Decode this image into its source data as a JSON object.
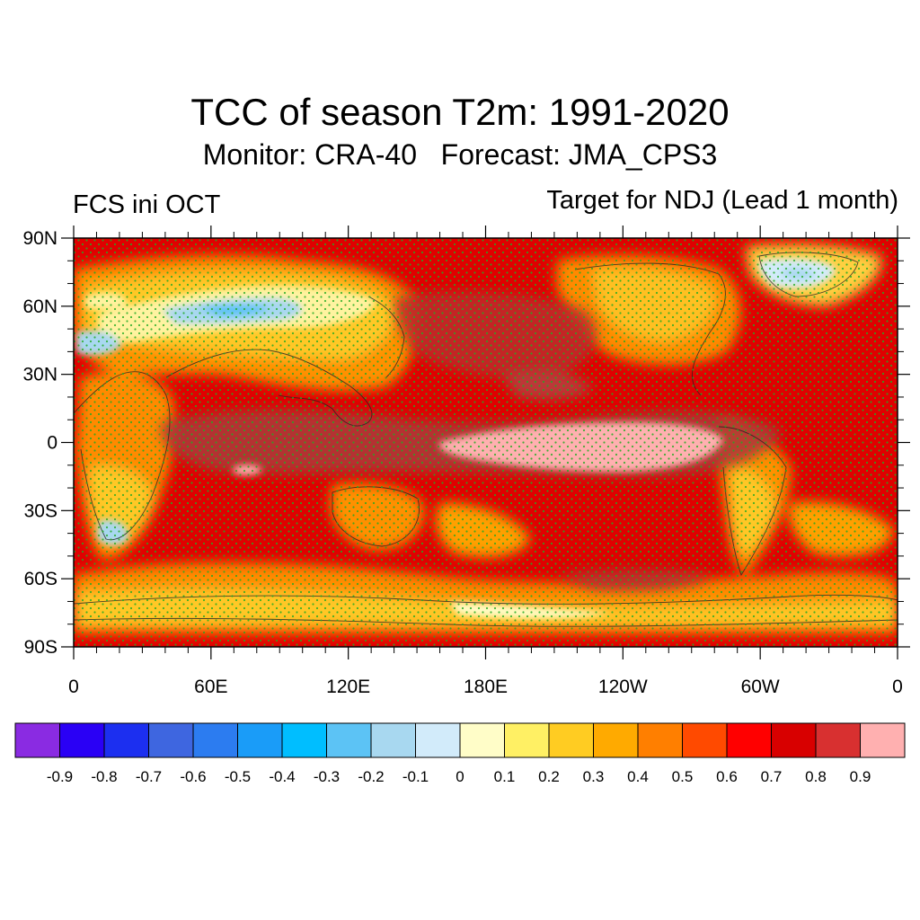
{
  "title": "TCC of season T2m: 1991-2020",
  "subtitle": "Monitor: CRA-40   Forecast: JMA_CPS3",
  "left_label": "FCS ini OCT",
  "right_label": "Target for NDJ (Lead 1 month)",
  "map": {
    "lat_labels": [
      "90N",
      "60N",
      "30N",
      "0",
      "30S",
      "60S",
      "90S"
    ],
    "lon_labels": [
      "0",
      "60E",
      "120E",
      "180E",
      "120W",
      "60W",
      "0"
    ],
    "stipple_color": "#22aa22",
    "background_color": "#e00000"
  },
  "colorbar": {
    "colors": [
      "#8a2be2",
      "#2a00f5",
      "#1c2ff0",
      "#3e66e0",
      "#2c7cf0",
      "#1a9cf8",
      "#00beff",
      "#5cc3f5",
      "#a8d8f0",
      "#d2ebfa",
      "#fffdc8",
      "#fff064",
      "#ffcc22",
      "#ffaa00",
      "#ff7f00",
      "#ff4a00",
      "#ff0000",
      "#d80000",
      "#d83030",
      "#ffb0b0"
    ],
    "labels": [
      "-0.9",
      "-0.8",
      "-0.7",
      "-0.6",
      "-0.5",
      "-0.4",
      "-0.3",
      "-0.2",
      "-0.1",
      "0",
      "0.1",
      "0.2",
      "0.3",
      "0.4",
      "0.5",
      "0.6",
      "0.7",
      "0.8",
      "0.9"
    ]
  }
}
